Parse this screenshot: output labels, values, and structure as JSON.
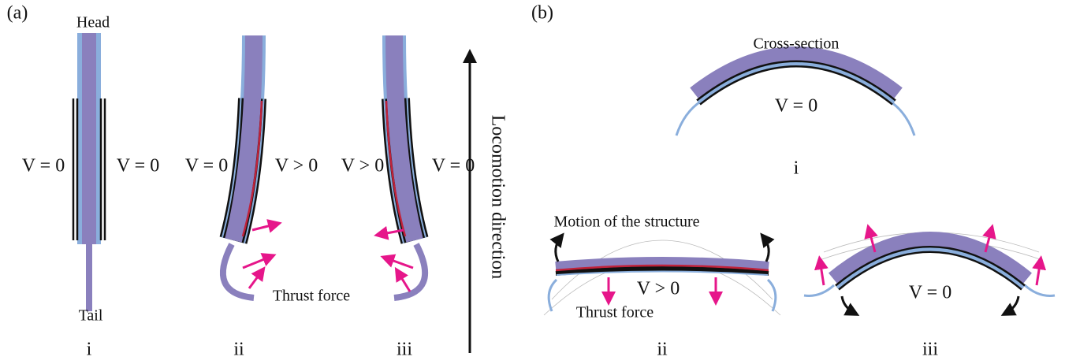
{
  "panel_a": {
    "label": "(a)",
    "head": "Head",
    "tail": "Tail",
    "locomotion": "Locomotion direction",
    "thrust": "Thrust force",
    "subfigures": [
      {
        "label": "i",
        "left": "V = 0",
        "right": "V = 0"
      },
      {
        "label": "ii",
        "left": "V = 0",
        "right": "V > 0"
      },
      {
        "label": "iii",
        "left": "V > 0",
        "right": "V = 0"
      }
    ]
  },
  "panel_b": {
    "label": "(b)",
    "subfigures": [
      {
        "label": "i",
        "title": "Cross-section",
        "voltage": "V = 0"
      },
      {
        "label": "ii",
        "title": "Motion of the structure",
        "voltage": "V > 0",
        "thrust": "Thrust force"
      },
      {
        "label": "iii",
        "voltage": "V = 0"
      }
    ]
  }
}
